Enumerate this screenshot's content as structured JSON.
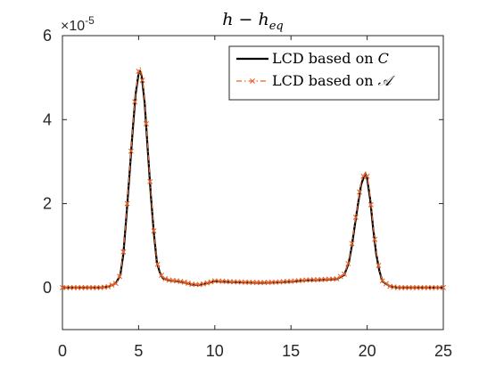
{
  "chart_data": {
    "type": "line",
    "title": "h − h_eq",
    "title_main": "h − h",
    "title_sub": "eq",
    "xlabel": "",
    "ylabel": "",
    "xlim": [
      0,
      25
    ],
    "ylim": [
      -1,
      6
    ],
    "y_multiplier": "×10^-5",
    "y_exponent_base": "×10",
    "y_exponent_power": "-5",
    "xticks": [
      0,
      5,
      10,
      15,
      20,
      25
    ],
    "yticks": [
      0,
      2,
      4,
      6
    ],
    "grid": false,
    "legend_position": "top-right",
    "series": [
      {
        "name": "LCD based on C",
        "legend_main": "LCD based on ",
        "legend_symbol": "C",
        "color": "#000000",
        "style": "solid",
        "x": [
          0,
          0.5,
          1,
          1.5,
          2,
          2.5,
          3,
          3.5,
          3.8,
          4,
          4.2,
          4.4,
          4.6,
          4.8,
          5,
          5.1,
          5.2,
          5.4,
          5.6,
          5.8,
          6,
          6.2,
          6.4,
          6.6,
          7,
          7.5,
          8,
          8.5,
          9,
          9.5,
          10,
          10.5,
          11,
          12,
          13,
          14,
          15,
          16,
          17,
          18,
          18.5,
          18.8,
          19,
          19.2,
          19.4,
          19.6,
          19.8,
          19.9,
          20,
          20.2,
          20.4,
          20.6,
          20.8,
          21,
          21.5,
          22,
          22.5,
          23,
          23.5,
          24,
          24.5,
          25
        ],
        "y": [
          0.0,
          0.0,
          0.0,
          0.0,
          0.0,
          0.0,
          0.02,
          0.1,
          0.3,
          0.8,
          1.7,
          2.7,
          3.7,
          4.6,
          5.1,
          5.15,
          5.05,
          4.4,
          3.3,
          2.2,
          1.3,
          0.6,
          0.35,
          0.22,
          0.17,
          0.15,
          0.12,
          0.07,
          0.06,
          0.1,
          0.15,
          0.14,
          0.13,
          0.12,
          0.11,
          0.12,
          0.14,
          0.17,
          0.18,
          0.2,
          0.3,
          0.6,
          1.0,
          1.5,
          2.0,
          2.45,
          2.65,
          2.7,
          2.6,
          2.1,
          1.4,
          0.8,
          0.4,
          0.15,
          0.03,
          0.0,
          0.0,
          0.0,
          0.0,
          0.0,
          0.0,
          0.0
        ]
      },
      {
        "name": "LCD based on A",
        "legend_main": "LCD based on ",
        "legend_symbol": "𝒜",
        "color": "#e8632b",
        "style": "dash-dot with x markers",
        "x": [
          0,
          0.5,
          1,
          1.5,
          2,
          2.5,
          3,
          3.5,
          3.8,
          4,
          4.2,
          4.4,
          4.6,
          4.8,
          5,
          5.1,
          5.2,
          5.4,
          5.6,
          5.8,
          6,
          6.2,
          6.4,
          6.6,
          7,
          7.5,
          8,
          8.5,
          9,
          9.5,
          10,
          10.5,
          11,
          12,
          13,
          14,
          15,
          16,
          17,
          18,
          18.5,
          18.8,
          19,
          19.2,
          19.4,
          19.6,
          19.8,
          19.9,
          20,
          20.2,
          20.4,
          20.6,
          20.8,
          21,
          21.5,
          22,
          22.5,
          23,
          23.5,
          24,
          24.5,
          25
        ],
        "y": [
          0.0,
          0.0,
          0.0,
          0.0,
          0.0,
          0.0,
          0.02,
          0.1,
          0.3,
          0.85,
          1.75,
          2.75,
          3.75,
          4.65,
          5.15,
          5.25,
          5.1,
          4.45,
          3.35,
          2.25,
          1.35,
          0.62,
          0.36,
          0.23,
          0.18,
          0.16,
          0.13,
          0.08,
          0.07,
          0.11,
          0.16,
          0.15,
          0.14,
          0.13,
          0.12,
          0.13,
          0.15,
          0.18,
          0.19,
          0.21,
          0.32,
          0.62,
          1.05,
          1.55,
          2.05,
          2.5,
          2.7,
          2.75,
          2.65,
          2.15,
          1.45,
          0.85,
          0.42,
          0.16,
          0.03,
          0.0,
          0.0,
          0.0,
          0.0,
          0.0,
          0.0,
          0.0
        ]
      }
    ]
  }
}
